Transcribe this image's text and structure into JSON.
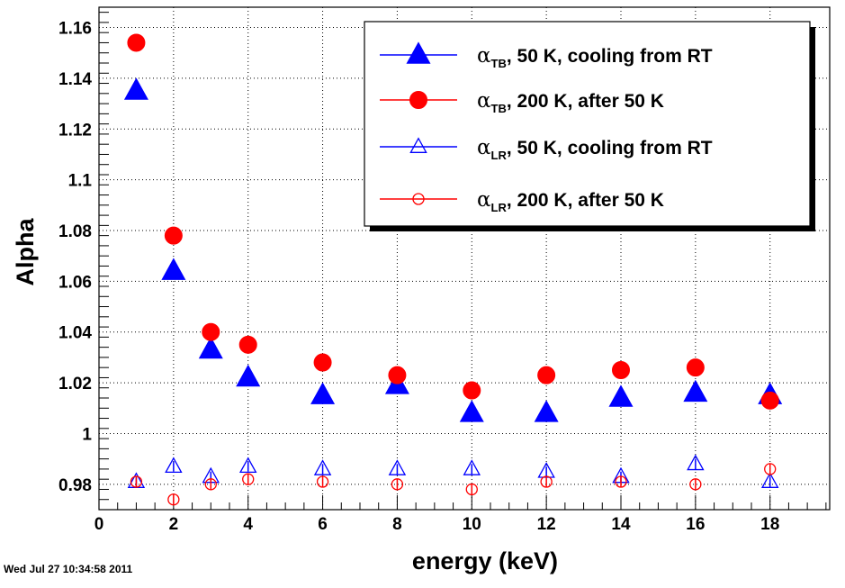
{
  "timestamp": "Wed Jul 27 10:34:58 2011",
  "chart_data": {
    "type": "scatter",
    "title": "",
    "xlabel": "energy (keV)",
    "ylabel": "Alpha",
    "xlim": [
      0,
      19.6
    ],
    "ylim": [
      0.97,
      1.168
    ],
    "xticks": [
      0,
      2,
      4,
      6,
      8,
      10,
      12,
      14,
      16,
      18
    ],
    "yticks": [
      0.98,
      1,
      1.02,
      1.04,
      1.06,
      1.08,
      1.1,
      1.12,
      1.14,
      1.16
    ],
    "ytick_labels": [
      "0.98",
      "1",
      "1.02",
      "1.04",
      "1.06",
      "1.08",
      "1.1",
      "1.12",
      "1.14",
      "1.16"
    ],
    "grid": true,
    "legend_position": "top-right",
    "series": [
      {
        "name_greek": "α",
        "name_sub": "TB",
        "name_rest": ", 50 K, cooling from RT",
        "marker": "triangle-filled",
        "color": "#0000ff",
        "x": [
          1,
          2,
          3,
          4,
          6,
          8,
          10,
          12,
          14,
          16,
          18
        ],
        "y": [
          1.135,
          1.064,
          1.033,
          1.022,
          1.015,
          1.019,
          1.008,
          1.008,
          1.014,
          1.016,
          1.015
        ],
        "err": [
          0.001,
          0.001,
          0.001,
          0.001,
          0.001,
          0.001,
          0.001,
          0.001,
          0.001,
          0.001,
          0.001
        ]
      },
      {
        "name_greek": "α",
        "name_sub": "TB",
        "name_rest": ", 200 K, after 50 K",
        "marker": "circle-filled",
        "color": "#ff0000",
        "x": [
          1,
          2,
          3,
          4,
          6,
          8,
          10,
          12,
          14,
          16,
          18
        ],
        "y": [
          1.154,
          1.078,
          1.04,
          1.035,
          1.028,
          1.023,
          1.017,
          1.023,
          1.025,
          1.026,
          1.013
        ],
        "err": [
          0.0025,
          0.0015,
          0.001,
          0.001,
          0.001,
          0.001,
          0.001,
          0.001,
          0.001,
          0.001,
          0.001
        ]
      },
      {
        "name_greek": "α",
        "name_sub": "LR",
        "name_rest": ", 50 K, cooling from RT",
        "marker": "triangle-open",
        "color": "#0000ff",
        "x": [
          1,
          2,
          3,
          4,
          6,
          8,
          10,
          12,
          14,
          16,
          18
        ],
        "y": [
          0.981,
          0.987,
          0.983,
          0.987,
          0.986,
          0.986,
          0.986,
          0.985,
          0.983,
          0.988,
          0.981
        ],
        "err": [
          0.002,
          0.002,
          0.002,
          0.002,
          0.002,
          0.002,
          0.002,
          0.002,
          0.002,
          0.002,
          0.002
        ]
      },
      {
        "name_greek": "α",
        "name_sub": "LR",
        "name_rest": ", 200 K, after 50 K",
        "marker": "circle-open",
        "color": "#ff0000",
        "x": [
          1,
          2,
          3,
          4,
          6,
          8,
          10,
          12,
          14,
          16,
          18
        ],
        "y": [
          0.981,
          0.974,
          0.98,
          0.982,
          0.981,
          0.98,
          0.978,
          0.981,
          0.981,
          0.98,
          0.986
        ],
        "err": [
          0.002,
          0.002,
          0.002,
          0.002,
          0.002,
          0.002,
          0.002,
          0.002,
          0.002,
          0.002,
          0.002
        ]
      }
    ]
  }
}
